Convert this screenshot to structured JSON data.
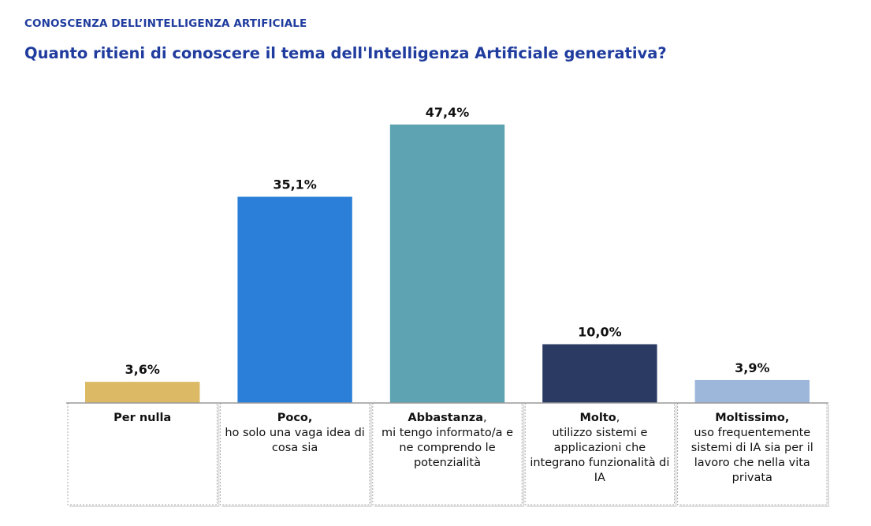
{
  "header": {
    "kicker": "CONOSCENZA DELL’INTELLIGENZA ARTIFICIALE",
    "title": "Quanto ritieni di conoscere il tema dell'Intelligenza Artificiale generativa?"
  },
  "chart_data": {
    "type": "bar",
    "categories": [
      {
        "head": "Per nulla",
        "tail": "",
        "desc": ""
      },
      {
        "head": "Poco,",
        "tail": "",
        "desc": "ho solo una vaga idea di cosa sia"
      },
      {
        "head": "Abbastanza",
        "tail": ",",
        "desc": "mi tengo informato/a e ne comprendo le potenzialità"
      },
      {
        "head": "Molto",
        "tail": ",",
        "desc": "utilizzo sistemi e applicazioni che integrano funzionalità di IA"
      },
      {
        "head": "Moltissimo,",
        "tail": "",
        "desc": "uso frequentemente sistemi di IA sia per il lavoro che nella vita privata"
      }
    ],
    "values": [
      3.6,
      35.1,
      47.4,
      10.0,
      3.9
    ],
    "value_labels": [
      "3,6%",
      "35,1%",
      "47,4%",
      "10,0%",
      "3,9%"
    ],
    "colors": [
      "#dcb964",
      "#2b7fd9",
      "#5ea3b1",
      "#2b3a63",
      "#9db7db"
    ],
    "ylim": [
      0,
      50
    ]
  }
}
